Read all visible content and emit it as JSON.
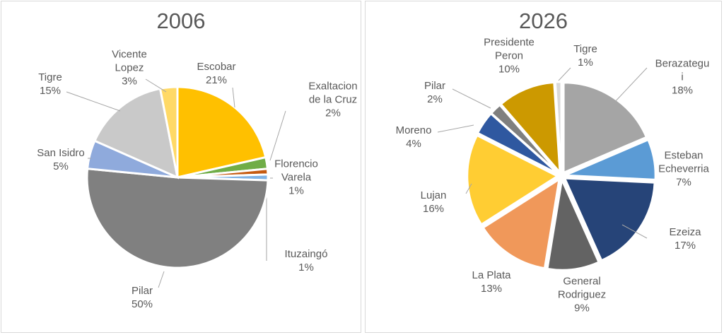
{
  "chart_data": [
    {
      "type": "pie",
      "title": "2006",
      "slices": [
        {
          "label": "Escobar",
          "value": 21,
          "text": "21%",
          "color": "#FFC000"
        },
        {
          "label": "Exaltacion de la Cruz",
          "value": 2,
          "text": "2%",
          "color": "#70AD47"
        },
        {
          "label": "Florencio Varela",
          "value": 1,
          "text": "1%",
          "color": "#C55A11"
        },
        {
          "label": "Ituzaingó",
          "value": 1,
          "text": "1%",
          "color": "#7FB2E5"
        },
        {
          "label": "Pilar",
          "value": 50,
          "text": "50%",
          "color": "#808080"
        },
        {
          "label": "San Isidro",
          "value": 5,
          "text": "5%",
          "color": "#8FAADC"
        },
        {
          "label": "Tigre",
          "value": 15,
          "text": "15%",
          "color": "#C9C9C9"
        },
        {
          "label": "Vicente Lopez",
          "value": 3,
          "text": "3%",
          "color": "#FFD966"
        }
      ]
    },
    {
      "type": "pie",
      "title": "2026",
      "slices": [
        {
          "label": "Berazategui",
          "value": 18,
          "text": "18%",
          "color": "#A5A5A5"
        },
        {
          "label": "Esteban Echeverria",
          "value": 7,
          "text": "7%",
          "color": "#5B9BD5"
        },
        {
          "label": "Ezeiza",
          "value": 17,
          "text": "17%",
          "color": "#264478"
        },
        {
          "label": "General Rodriguez",
          "value": 9,
          "text": "9%",
          "color": "#636363"
        },
        {
          "label": "La Plata",
          "value": 13,
          "text": "13%",
          "color": "#F0985A"
        },
        {
          "label": "Lujan",
          "value": 16,
          "text": "16%",
          "color": "#FFCD33"
        },
        {
          "label": "Moreno",
          "value": 4,
          "text": "4%",
          "color": "#2F58A0"
        },
        {
          "label": "Pilar",
          "value": 2,
          "text": "2%",
          "color": "#7F7F7F"
        },
        {
          "label": "Presidente Peron",
          "value": 10,
          "text": "10%",
          "color": "#CC9900"
        },
        {
          "label": "Tigre",
          "value": 1,
          "text": "1%",
          "color": "#D9D9D9"
        }
      ]
    }
  ]
}
